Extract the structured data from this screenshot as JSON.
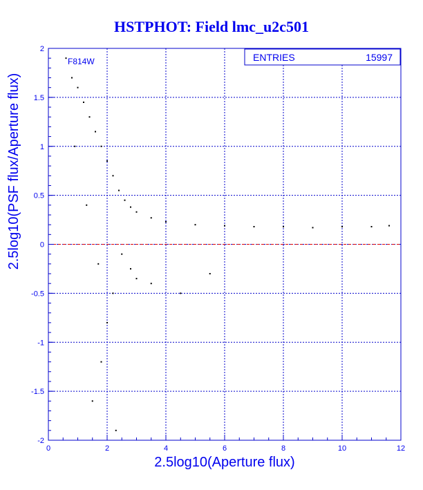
{
  "chart_data": {
    "type": "scatter",
    "title": "HSTPHOT: Field lmc_u2c501",
    "xlabel": "2.5log10(Aperture flux)",
    "ylabel": "2.5log10(PSF flux/Aperture flux)",
    "xlim": [
      0,
      12
    ],
    "ylim": [
      -2,
      2
    ],
    "x_ticks": [
      "0",
      "2",
      "4",
      "6",
      "8",
      "10",
      "12"
    ],
    "y_ticks": [
      "2",
      "1.5",
      "1",
      "0.5",
      "0",
      "-0.5",
      "-1",
      "-1.5",
      "-2"
    ],
    "x_tick_values": [
      0,
      2,
      4,
      6,
      8,
      10,
      12
    ],
    "y_tick_values": [
      2,
      1.5,
      1,
      0.5,
      0,
      -0.5,
      -1,
      -1.5,
      -2
    ],
    "grid": true,
    "reference_line": {
      "y": 0,
      "style": "dashed",
      "color": "#dd0000"
    },
    "filter_label": "F814W",
    "stats_box": {
      "label": "ENTRIES",
      "value": "15997",
      "placement": "top-right"
    },
    "point_color": "#000000",
    "axis_color": "#0000cc",
    "grid_color": "#0000cc",
    "text_color": "#0000ee",
    "series": [
      {
        "points": [
          [
            0.6,
            1.9
          ],
          [
            0.8,
            1.7
          ],
          [
            1.0,
            1.6
          ],
          [
            1.2,
            1.45
          ],
          [
            1.4,
            1.3
          ],
          [
            1.6,
            1.15
          ],
          [
            1.8,
            1.0
          ],
          [
            2.0,
            0.85
          ],
          [
            2.2,
            0.7
          ],
          [
            2.4,
            0.55
          ],
          [
            2.6,
            0.45
          ],
          [
            2.8,
            0.38
          ],
          [
            3.0,
            0.33
          ],
          [
            3.5,
            0.27
          ],
          [
            4.0,
            0.23
          ],
          [
            5.0,
            0.2
          ],
          [
            6.0,
            0.19
          ],
          [
            7.0,
            0.18
          ],
          [
            8.0,
            0.18
          ],
          [
            9.0,
            0.17
          ],
          [
            10.0,
            0.18
          ],
          [
            11.0,
            0.18
          ],
          [
            11.6,
            0.19
          ],
          [
            2.5,
            -0.1
          ],
          [
            2.8,
            -0.25
          ],
          [
            3.0,
            -0.35
          ],
          [
            3.5,
            -0.4
          ],
          [
            2.2,
            -0.5
          ],
          [
            2.0,
            -0.8
          ],
          [
            1.8,
            -1.2
          ],
          [
            1.5,
            -1.6
          ],
          [
            2.3,
            -1.9
          ],
          [
            4.5,
            -0.5
          ],
          [
            5.5,
            -0.3
          ],
          [
            0.9,
            1.0
          ],
          [
            1.3,
            0.4
          ],
          [
            1.7,
            -0.2
          ]
        ]
      }
    ]
  }
}
